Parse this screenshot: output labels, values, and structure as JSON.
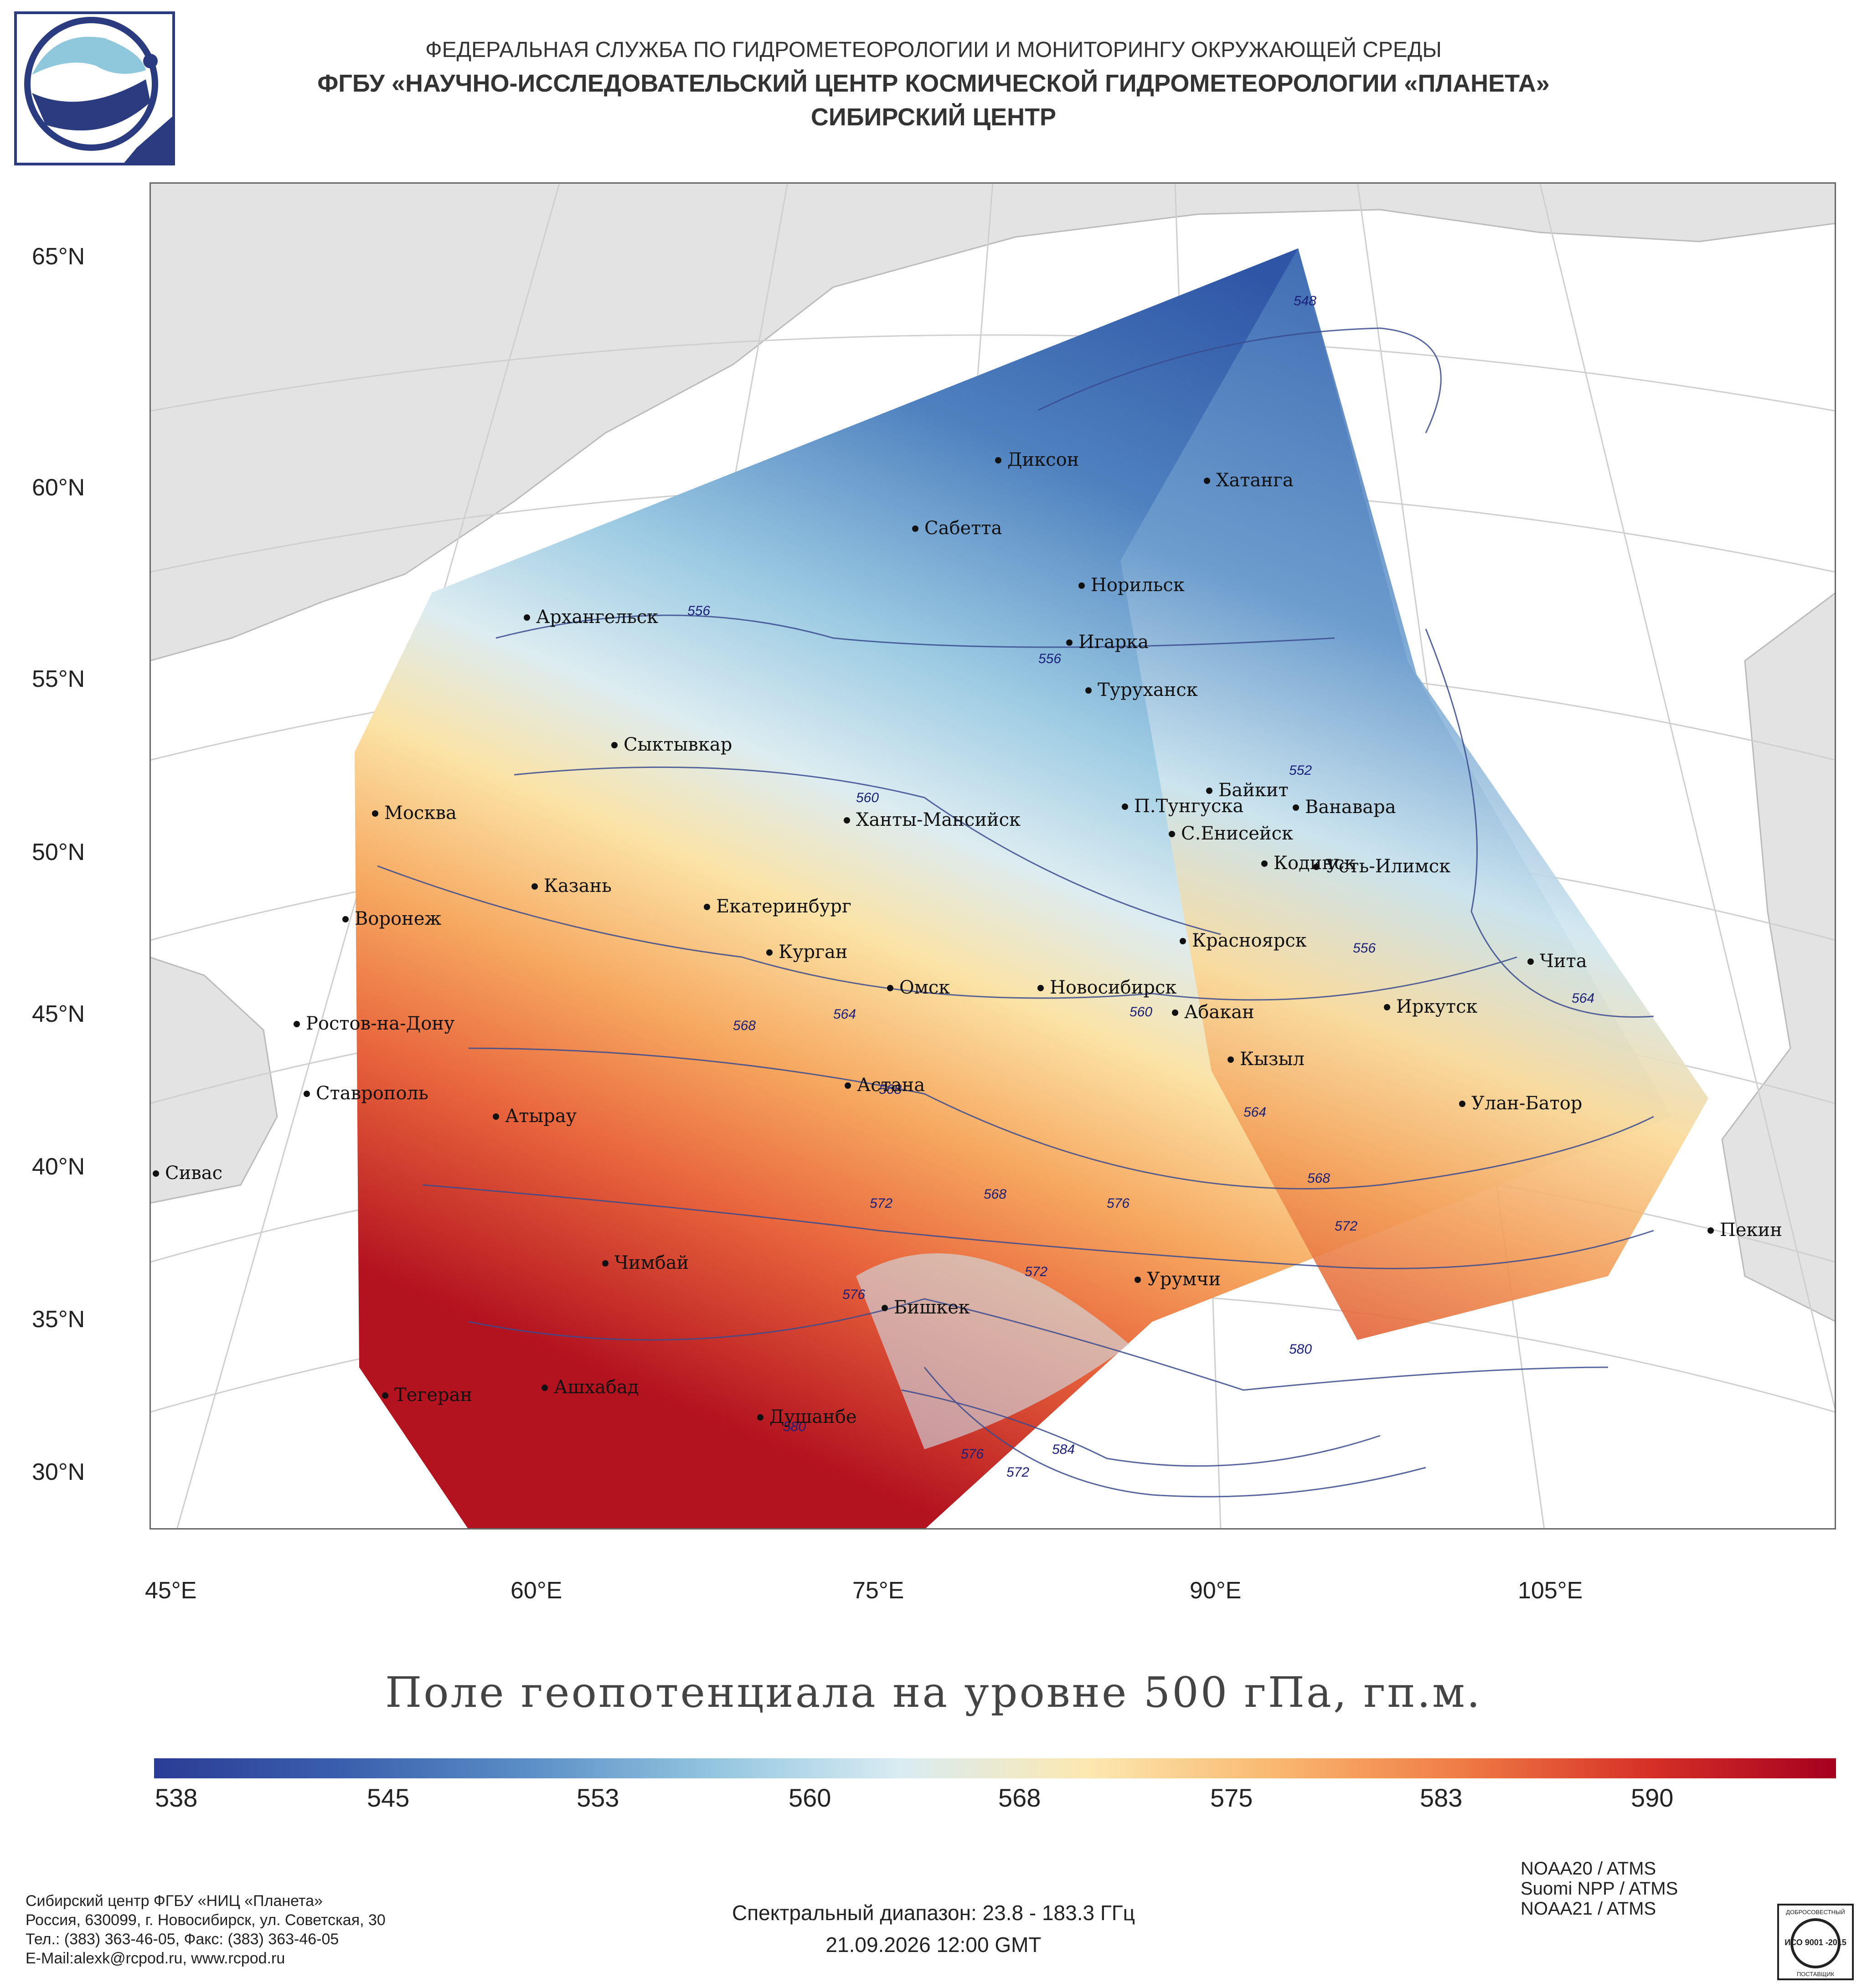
{
  "header": {
    "line1": "ФЕДЕРАЛЬНАЯ СЛУЖБА ПО ГИДРОМЕТЕОРОЛОГИИ И МОНИТОРИНГУ ОКРУЖАЮЩЕЙ СРЕДЫ",
    "line2": "ФГБУ «НАУЧНО-ИССЛЕДОВАТЕЛЬСКИЙ ЦЕНТР КОСМИЧЕСКОЙ ГИДРОМЕТЕОРОЛОГИИ «ПЛАНЕТА»",
    "line3": "СИБИРСКИЙ ЦЕНТР"
  },
  "map": {
    "lat_labels": [
      "65°N",
      "60°N",
      "55°N",
      "50°N",
      "45°N",
      "40°N",
      "35°N",
      "30°N"
    ],
    "lon_labels": [
      "45°E",
      "60°E",
      "75°E",
      "90°E",
      "105°E"
    ],
    "cities": [
      "Диксон",
      "Хатанга",
      "Сабетта",
      "Норильск",
      "Архангельск",
      "Игарка",
      "Туруханск",
      "Сыктывкар",
      "Байкит",
      "Москва",
      "П.Тунгуска",
      "Ванавара",
      "Ханты-Мансийск",
      "С.Енисейск",
      "Кодинск",
      "Усть-Илимск",
      "Казань",
      "Екатеринбург",
      "Воронеж",
      "Красноярск",
      "Курган",
      "Чита",
      "Омск",
      "Новосибирск",
      "Абакан",
      "Иркутск",
      "Ростов-на-Дону",
      "Кызыл",
      "Астана",
      "Ставрополь",
      "Улан-Батор",
      "Атырау",
      "Сивас",
      "Пекин",
      "Чимбай",
      "Урумчи",
      "Бишкек",
      "Ашхабад",
      "Тегеран",
      "Душанбе"
    ],
    "contour_labels": [
      "548",
      "556",
      "556",
      "552",
      "556",
      "560",
      "564",
      "564",
      "568",
      "560",
      "568",
      "564",
      "572",
      "568",
      "576",
      "568",
      "572",
      "576",
      "572",
      "580",
      "580",
      "576",
      "584",
      "572"
    ]
  },
  "title": "Поле геопотенциала на уровне 500 гПа, гп.м.",
  "colorbar": {
    "ticks": [
      "538",
      "545",
      "553",
      "560",
      "568",
      "575",
      "583",
      "590"
    ],
    "colors": [
      "#2b3c96",
      "#3a5fad",
      "#5b8ec6",
      "#94c6e0",
      "#d9ecf2",
      "#fce8b0",
      "#f9b870",
      "#ef7b45",
      "#d63027",
      "#a5001f"
    ]
  },
  "footer": {
    "address": [
      "Сибирский центр ФГБУ «НИЦ «Планета»",
      "Россия, 630099, г. Новосибирск, ул. Советская, 30",
      "Тел.: (383) 363-46-05, Факс: (383) 363-46-05",
      "E-Mail:alexk@rcpod.ru, www.rcpod.ru"
    ],
    "spectral": "Спектральный диапазон: 23.8 - 183.3 ГГц",
    "datetime": "21.09.2026 12:00 GMT",
    "satellites": [
      "NOAA20 / ATMS",
      "Suomi NPP / ATMS",
      "NOAA21 / ATMS"
    ],
    "iso_text": "ИСО 9001 -2015",
    "iso_top": "ДОБРОСОВЕСТНЫЙ",
    "iso_bottom": "ПОСТАВЩИК"
  }
}
